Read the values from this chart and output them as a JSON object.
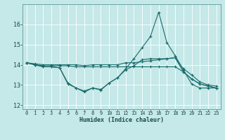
{
  "title": "",
  "xlabel": "Humidex (Indice chaleur)",
  "ylabel": "",
  "bg_color": "#c5e8e8",
  "line_color": "#1a6b6b",
  "grid_color": "#ffffff",
  "xlim": [
    -0.5,
    23.5
  ],
  "ylim": [
    11.8,
    17.0
  ],
  "xticks": [
    0,
    1,
    2,
    3,
    4,
    5,
    6,
    7,
    8,
    9,
    10,
    11,
    12,
    13,
    14,
    15,
    16,
    17,
    18,
    19,
    20,
    21,
    22,
    23
  ],
  "yticks": [
    12,
    13,
    14,
    15,
    16
  ],
  "line1_x": [
    0,
    1,
    2,
    3,
    4,
    5,
    6,
    7,
    8,
    9,
    10,
    11,
    12,
    13,
    14,
    15,
    16,
    17,
    18,
    19,
    20,
    21,
    22,
    23
  ],
  "line1_y": [
    14.1,
    14.0,
    13.9,
    13.9,
    13.85,
    13.1,
    12.85,
    12.7,
    12.85,
    12.78,
    13.1,
    13.35,
    13.75,
    13.95,
    14.25,
    14.3,
    14.3,
    14.3,
    14.35,
    13.65,
    13.3,
    13.05,
    12.95,
    12.85
  ],
  "line2_x": [
    0,
    1,
    2,
    3,
    4,
    5,
    6,
    7,
    8,
    9,
    10,
    11,
    12,
    13,
    14,
    15,
    16,
    17,
    18,
    19,
    20,
    21,
    22,
    23
  ],
  "line2_y": [
    14.1,
    14.0,
    13.9,
    13.9,
    13.85,
    13.05,
    12.85,
    12.65,
    12.85,
    12.75,
    13.1,
    13.35,
    13.8,
    14.3,
    14.85,
    15.4,
    16.6,
    15.1,
    14.45,
    13.75,
    13.05,
    12.85,
    12.85,
    12.85
  ],
  "line3_x": [
    0,
    1,
    2,
    3,
    4,
    5,
    6,
    7,
    8,
    9,
    10,
    11,
    12,
    13,
    14,
    15,
    16,
    17,
    18,
    19,
    20,
    21,
    22,
    23
  ],
  "line3_y": [
    14.1,
    14.0,
    13.95,
    13.95,
    13.95,
    13.95,
    13.9,
    13.9,
    13.9,
    13.9,
    13.9,
    13.9,
    13.9,
    13.9,
    13.9,
    13.9,
    13.9,
    13.9,
    13.9,
    13.65,
    13.3,
    13.05,
    12.95,
    12.85
  ],
  "line4_x": [
    0,
    1,
    2,
    3,
    4,
    5,
    6,
    7,
    8,
    9,
    10,
    11,
    12,
    13,
    14,
    15,
    16,
    17,
    18,
    19,
    20,
    21,
    22,
    23
  ],
  "line4_y": [
    14.1,
    14.05,
    14.0,
    14.0,
    14.0,
    14.0,
    14.0,
    13.95,
    14.0,
    14.0,
    14.0,
    14.0,
    14.1,
    14.1,
    14.15,
    14.2,
    14.25,
    14.3,
    14.35,
    13.8,
    13.5,
    13.15,
    13.0,
    12.95
  ],
  "marker": "+",
  "markersize": 3,
  "linewidth": 0.8,
  "tick_fontsize": 5,
  "xlabel_fontsize": 6
}
